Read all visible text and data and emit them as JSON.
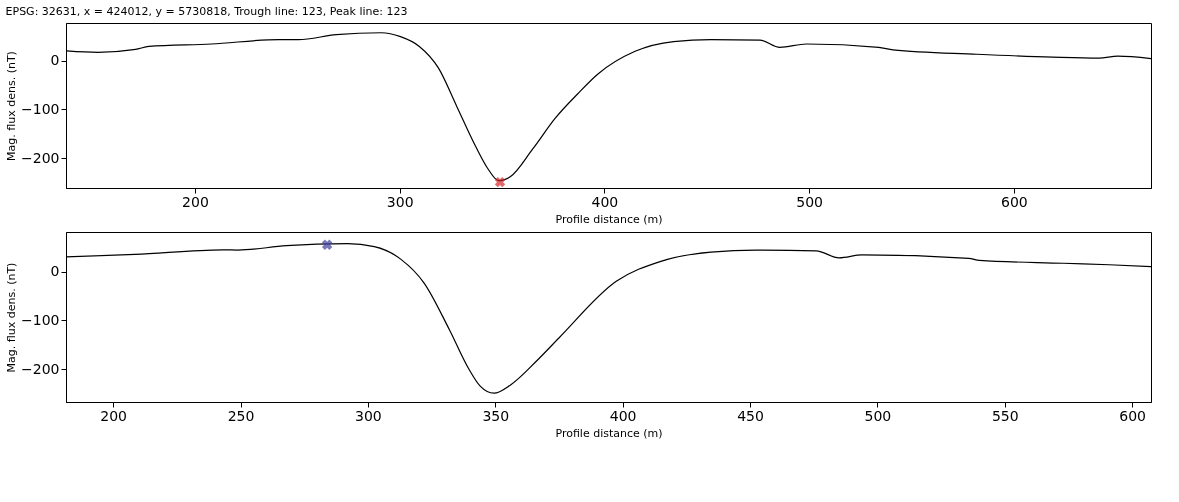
{
  "chart_data": [
    {
      "type": "line",
      "title": "EPSG: 32631, x = 424012, y = 5730818, Trough line: 123, Peak line: 123",
      "xlabel": "Profile distance (m)",
      "ylabel": "Mag. flux dens. (nT)",
      "xlim": [
        137,
        667
      ],
      "xticks": [
        200,
        300,
        400,
        500,
        600
      ],
      "ylim": [
        -261,
        77
      ],
      "yticks": [
        -200,
        -100,
        0
      ],
      "grid": false,
      "series": [
        {
          "color": "#000000",
          "x": [
            137.3,
            152.5,
            171,
            177.5,
            208,
            241,
            250.5,
            269,
            291,
            300.4,
            309.6,
            318.9,
            328,
            337,
            343,
            348.4,
            354,
            365,
            376,
            387,
            396.7,
            415,
            433.8,
            452,
            476,
            485.7,
            498.7,
            534,
            541,
            582,
            619,
            641.6,
            650.8,
            667
          ],
          "values": [
            20,
            17,
            23,
            29,
            34,
            43,
            43,
            53,
            57,
            49,
            29,
            -15,
            -95,
            -175,
            -221,
            -246,
            -238,
            -181,
            -118,
            -68,
            -28,
            19,
            39,
            43,
            42,
            27,
            34,
            27,
            22,
            13,
            7,
            5,
            9,
            4
          ]
        },
        {
          "type": "scatter",
          "marker": "cross",
          "color": "#d62728",
          "x": [
            349
          ],
          "values": [
            -249
          ]
        }
      ]
    },
    {
      "type": "line",
      "xlabel": "Profile distance (m)",
      "ylabel": "Mag. flux dens. (nT)",
      "xlim": [
        181.5,
        607.4
      ],
      "xticks": [
        200,
        250,
        300,
        350,
        400,
        450,
        500,
        550,
        600
      ],
      "ylim": [
        -267,
        81
      ],
      "yticks": [
        -200,
        -100,
        0
      ],
      "grid": false,
      "series": [
        {
          "color": "#000000",
          "x": [
            181.5,
            208.6,
            243,
            249,
            268,
            292,
            302.5,
            313,
            322,
            332,
            339.8,
            344,
            349.5,
            356,
            366.6,
            375,
            397.5,
            415,
            434.7,
            452.5,
            476,
            485,
            494,
            535.9,
            540,
            573,
            591,
            607.4
          ],
          "values": [
            30,
            35,
            44.5,
            44,
            53,
            57,
            51,
            25,
            -23,
            -119,
            -201,
            -234,
            -249,
            -232,
            -181,
            -136,
            -20,
            21,
            40,
            44,
            42.5,
            28,
            34,
            27,
            23,
            17,
            14,
            10
          ]
        },
        {
          "type": "scatter",
          "marker": "cross",
          "color": "#3f3fa0",
          "x": [
            284
          ],
          "values": [
            55
          ]
        }
      ]
    }
  ]
}
